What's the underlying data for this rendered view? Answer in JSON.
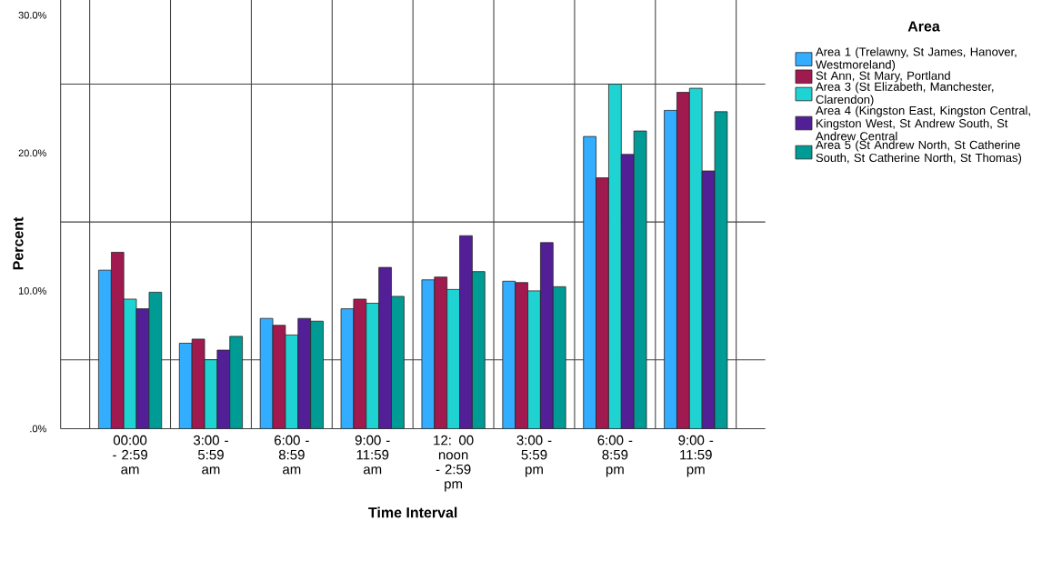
{
  "chart_data": {
    "type": "bar",
    "xlabel": "Time Interval",
    "ylabel": "Percent",
    "legend_title": "Area",
    "categories": [
      "00:00 - 2:59 am",
      "3:00 - 5:59 am",
      "6:00 - 8:59 am",
      "9:00 - 11:59 am",
      "12: 00 noon - 2:59 pm",
      "3:00 - 5:59 pm",
      "6:00 - 8:59 pm",
      "9:00 - 11:59 pm"
    ],
    "series": [
      {
        "name": "Area 1 (Trelawny, St James, Hanover, Westmoreland)",
        "color": "#33adff",
        "values": [
          11.5,
          6.2,
          8.0,
          8.7,
          10.8,
          10.7,
          21.2,
          23.1
        ]
      },
      {
        "name": "St Ann, St Mary, Portland",
        "color": "#a0194f",
        "values": [
          12.8,
          6.5,
          7.5,
          9.4,
          11.0,
          10.6,
          18.2,
          24.4
        ]
      },
      {
        "name": "Area 3 (St Elizabeth, Manchester, Clarendon)",
        "color": "#20d3d3",
        "values": [
          9.4,
          5.0,
          6.8,
          9.1,
          10.1,
          10.0,
          25.0,
          24.7
        ]
      },
      {
        "name": "Area 4 (Kingston East, Kingston Central, Kingston West, St Andrew South, St Andrew Central",
        "color": "#531f96",
        "values": [
          8.7,
          5.7,
          8.0,
          11.7,
          14.0,
          13.5,
          19.9,
          18.7
        ]
      },
      {
        "name": "Area 5 (St Andrew North, St Catherine South, St Catherine North, St Thomas)",
        "color": "#009b95",
        "values": [
          9.9,
          6.7,
          7.8,
          9.6,
          11.4,
          10.3,
          21.6,
          23.0
        ]
      }
    ],
    "ylim": [
      0,
      31.6
    ],
    "yticks": [
      {
        "value": 0,
        "label": ".0%"
      },
      {
        "value": 5,
        "label": null
      },
      {
        "value": 10,
        "label": "10.0%"
      },
      {
        "value": 15,
        "label": null
      },
      {
        "value": 20,
        "label": "20.0%"
      },
      {
        "value": 25,
        "label": null
      },
      {
        "value": 30,
        "label": "30.0%"
      }
    ],
    "grid": true,
    "legend": "right"
  }
}
